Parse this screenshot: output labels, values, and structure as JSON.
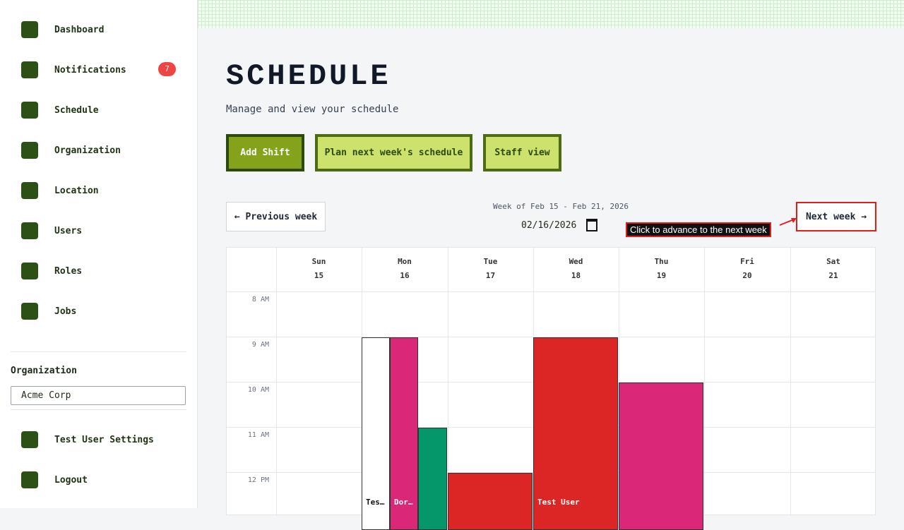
{
  "sidebar": {
    "nav": [
      {
        "label": "Dashboard"
      },
      {
        "label": "Notifications",
        "badge": 7
      },
      {
        "label": "Schedule"
      },
      {
        "label": "Organization"
      },
      {
        "label": "Location"
      },
      {
        "label": "Users"
      },
      {
        "label": "Roles"
      },
      {
        "label": "Jobs"
      }
    ],
    "org_label": "Organization",
    "org_select": "Acme Corp",
    "footer": [
      "Test User Settings",
      "Logout"
    ]
  },
  "header": {
    "title": "SCHEDULE",
    "subtitle": "Manage and view your schedule"
  },
  "actions": [
    "Add Shift",
    "Plan next week's schedule",
    "Staff view"
  ],
  "week": {
    "prev": "← Previous week",
    "range": "Week of Feb 15 - Feb 21, 2026",
    "date": "02/16/2026",
    "next": "Next week →"
  },
  "tooltip": "Click to advance to the next week",
  "calendar": {
    "days": [
      {
        "name": "Sun",
        "date": 15
      },
      {
        "name": "Mon",
        "date": 16
      },
      {
        "name": "Tue",
        "date": 17
      },
      {
        "name": "Wed",
        "date": 18
      },
      {
        "name": "Thu",
        "date": 19
      },
      {
        "name": "Fri",
        "date": 20
      },
      {
        "name": "Sat",
        "date": 21
      }
    ],
    "hours": [
      "8 AM",
      "9 AM",
      "10 AM",
      "11 AM",
      "12 PM"
    ],
    "shifts": [
      {
        "label": "Tes…",
        "color": "#ffffff"
      },
      {
        "label": "Dor…",
        "color": "#db2777"
      },
      {
        "color": "#059669"
      },
      {
        "color": "#dc2626"
      },
      {
        "label": "Test User",
        "color": "#dc2626"
      },
      {
        "color": "#db2777"
      }
    ]
  }
}
